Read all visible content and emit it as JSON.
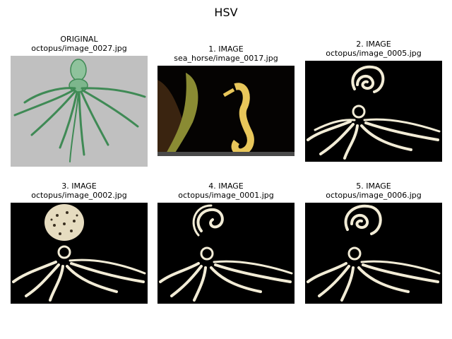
{
  "figure": {
    "title": "HSV"
  },
  "panels": [
    {
      "heading": "ORIGINAL",
      "path": "octopus/image_0027.jpg",
      "subject": "octopus-drawing-green"
    },
    {
      "heading": "1. IMAGE",
      "path": "sea_horse/image_0017.jpg",
      "subject": "seahorse-photo"
    },
    {
      "heading": "2. IMAGE",
      "path": "octopus/image_0005.jpg",
      "subject": "octopus-engraving-spiral"
    },
    {
      "heading": "3. IMAGE",
      "path": "octopus/image_0002.jpg",
      "subject": "octopus-engraving-spotted"
    },
    {
      "heading": "4. IMAGE",
      "path": "octopus/image_0001.jpg",
      "subject": "octopus-engraving-spiral"
    },
    {
      "heading": "5. IMAGE",
      "path": "octopus/image_0006.jpg",
      "subject": "octopus-engraving-spiral"
    }
  ],
  "colors": {
    "original_background": "#c0c0c0",
    "original_ink": "#3f8a55",
    "dark_background": "#000000",
    "engraving_ink": "#f2ecd6",
    "seahorse": "#e8c65a"
  }
}
